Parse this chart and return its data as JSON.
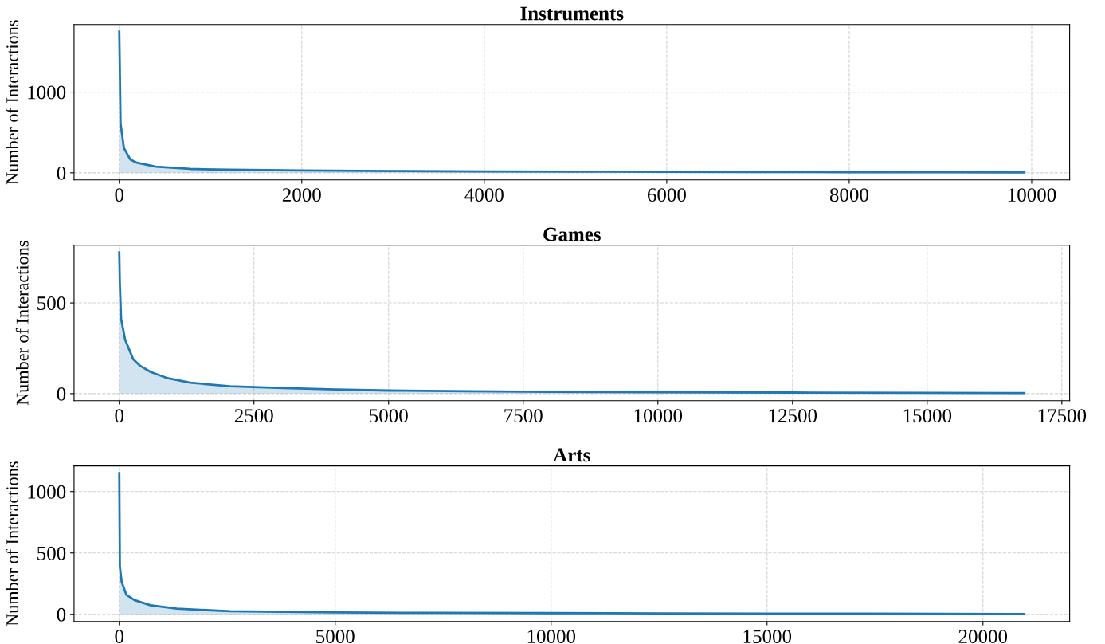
{
  "chart_data": [
    {
      "type": "area",
      "title": "Instruments",
      "ylabel": "Number of Interactions",
      "grid": true,
      "legend": false,
      "xlim": [
        -496,
        10416
      ],
      "ylim": [
        -88,
        1838
      ],
      "xticks": [
        0,
        2000,
        4000,
        6000,
        8000,
        10000
      ],
      "yticks": [
        0,
        1000
      ],
      "series": [
        {
          "color": "#1f77b4",
          "x": [
            0,
            14,
            50,
            122,
            192,
            400,
            776,
            1212,
            2000,
            3000,
            4000,
            5000,
            6000,
            7000,
            8000,
            9000,
            9920
          ],
          "values": [
            1750,
            615,
            308,
            163,
            125,
            77,
            48,
            38,
            29,
            22,
            18,
            15,
            12,
            10,
            8,
            7,
            5
          ]
        }
      ]
    },
    {
      "type": "area",
      "title": "Games",
      "ylabel": "Number of Interactions",
      "grid": true,
      "legend": false,
      "xlim": [
        -840,
        17645
      ],
      "ylim": [
        -39,
        818
      ],
      "xticks": [
        0,
        2500,
        5000,
        7500,
        10000,
        12500,
        15000,
        17500
      ],
      "yticks": [
        0,
        500
      ],
      "series": [
        {
          "color": "#1f77b4",
          "x": [
            0,
            10,
            34,
            108,
            256,
            380,
            577,
            873,
            1317,
            2056,
            3043,
            4024,
            5015,
            6500,
            8000,
            10000,
            12500,
            15000,
            16805
          ],
          "values": [
            779,
            611,
            412,
            298,
            191,
            155,
            120,
            87,
            60,
            41,
            31,
            23,
            17,
            13,
            10,
            8,
            6,
            4,
            3
          ]
        }
      ]
    },
    {
      "type": "area",
      "title": "Arts",
      "ylabel": "Number of Interactions",
      "grid": true,
      "legend": false,
      "xlim": [
        -1048,
        22008
      ],
      "ylim": [
        -58,
        1208
      ],
      "xticks": [
        0,
        5000,
        10000,
        15000,
        20000
      ],
      "yticks": [
        0,
        500,
        1000
      ],
      "series": [
        {
          "color": "#1f77b4",
          "x": [
            0,
            13,
            55,
            166,
            350,
            720,
            1334,
            2565,
            5024,
            7500,
            10000,
            12500,
            15000,
            17500,
            20960
          ],
          "values": [
            1150,
            390,
            264,
            158,
            116,
            74,
            46,
            25,
            15,
            12,
            10,
            8,
            6,
            5,
            3
          ]
        }
      ]
    }
  ]
}
